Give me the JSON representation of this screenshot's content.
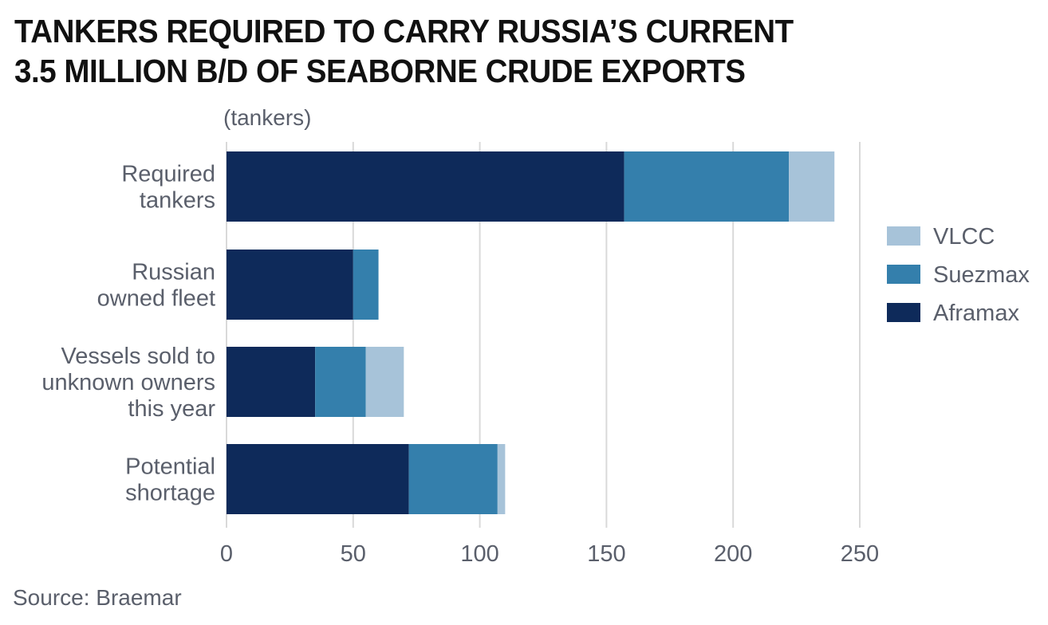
{
  "chart_data": {
    "type": "bar",
    "orientation": "horizontal",
    "stacked": true,
    "title_lines": [
      "TANKERS REQUIRED TO CARRY RUSSIA’S CURRENT",
      "3.5 MILLION B/D OF SEABORNE CRUDE EXPORTS"
    ],
    "unit_label": "(tankers)",
    "categories": [
      [
        "Required",
        "tankers"
      ],
      [
        "Russian",
        "owned fleet"
      ],
      [
        "Vessels sold to",
        "unknown owners",
        "this year"
      ],
      [
        "Potential",
        "shortage"
      ]
    ],
    "series": [
      {
        "name": "Aframax",
        "color": "#0e2a5a",
        "values": [
          157,
          50,
          35,
          72
        ]
      },
      {
        "name": "Suezmax",
        "color": "#347fac",
        "values": [
          65,
          10,
          20,
          35
        ]
      },
      {
        "name": "VLCC",
        "color": "#a7c3d9",
        "values": [
          18,
          0,
          15,
          3
        ]
      }
    ],
    "legend_order": [
      "VLCC",
      "Suezmax",
      "Aframax"
    ],
    "legend_position": "right",
    "xlim": [
      0,
      250
    ],
    "xticks": [
      0,
      50,
      100,
      150,
      200,
      250
    ],
    "grid": true,
    "source": "Source: Braemar"
  }
}
